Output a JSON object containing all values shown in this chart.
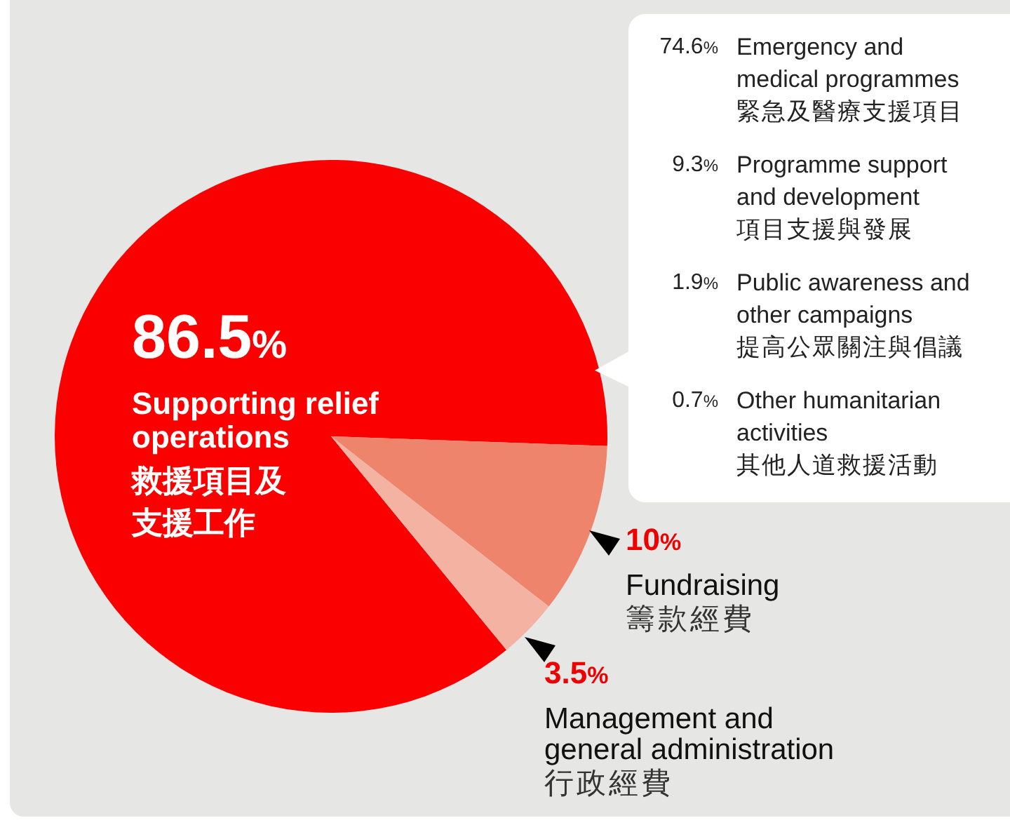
{
  "chart_data": [
    {
      "type": "pie",
      "categories": [
        "Supporting relief operations\n救援項目及支援工作",
        "Fundraising\n籌款經費",
        "Management and general administration\n行政經費"
      ],
      "values": [
        86.5,
        10,
        3.5
      ],
      "colors": [
        "#fa0000",
        "#ee846c",
        "#f4b2a2"
      ],
      "value_labels": [
        "86.5%",
        "10%",
        "3.5%"
      ]
    },
    {
      "type": "other",
      "categories": [
        "Emergency and medical programmes\n緊急及醫療支援項目",
        "Programme support and development\n項目支援與發展",
        "Public awareness and other campaigns\n提高公眾關注與倡議",
        "Other humanitarian activities\n其他人道救援活動"
      ],
      "value_labels": [
        "74.6%",
        "9.3%",
        "1.9%",
        "0.7%"
      ]
    }
  ]
}
